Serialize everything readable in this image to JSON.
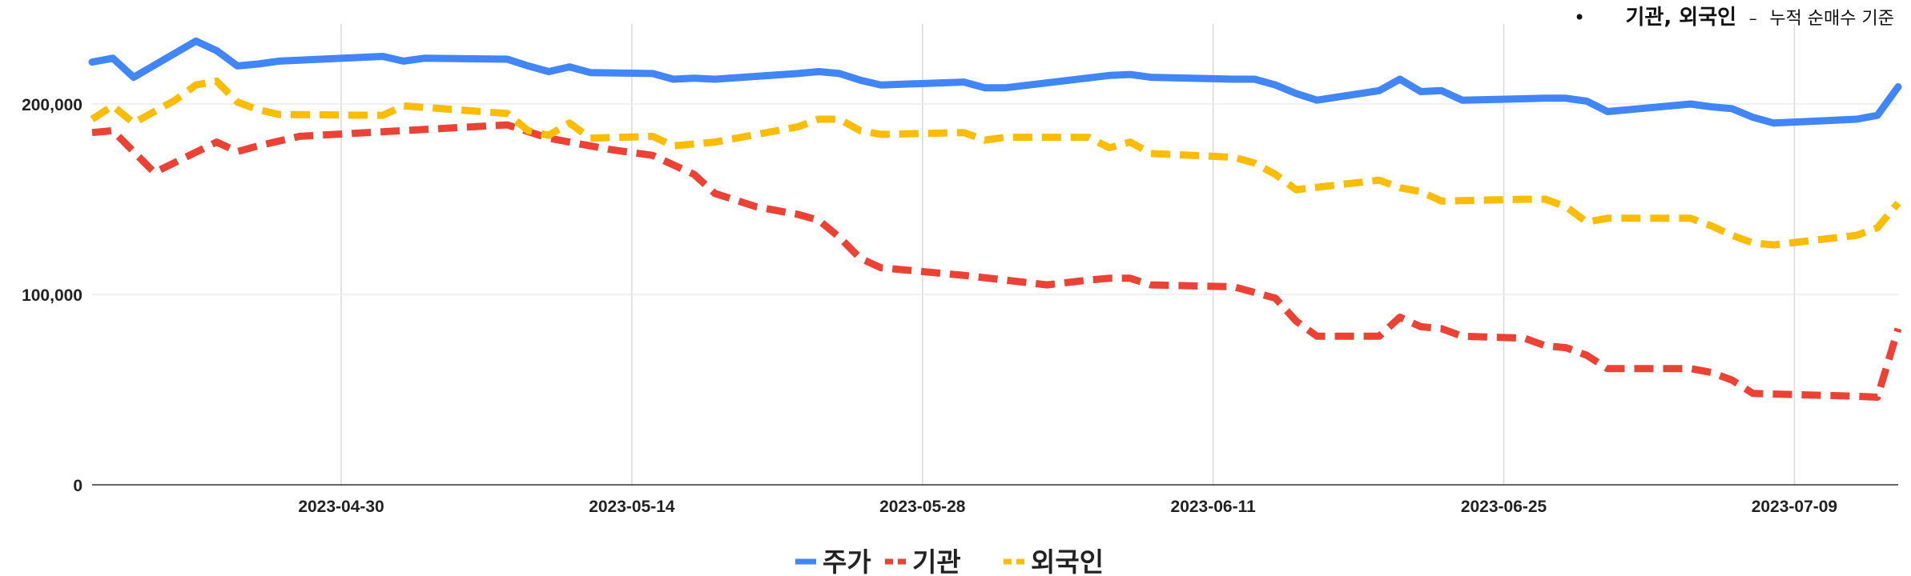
{
  "chart_data": {
    "type": "line",
    "title": "",
    "xlabel": "",
    "ylabel": "",
    "note": {
      "bullet": "•",
      "main": "기관, 외국인",
      "dash": "–",
      "rest": "누적 순매수 기준"
    },
    "x_ticks": [
      "2023-04-30",
      "2023-05-14",
      "2023-05-28",
      "2023-06-11",
      "2023-06-25",
      "2023-07-09"
    ],
    "y_ticks": [
      {
        "value": 0,
        "label": "0"
      },
      {
        "value": 100000,
        "label": "100,000"
      },
      {
        "value": 200000,
        "label": "200,000"
      }
    ],
    "x_range": [
      "2023-04-18",
      "2023-07-14"
    ],
    "y_range": [
      0,
      242000
    ],
    "grid": {
      "vertical": true,
      "horizontal": true
    },
    "legend_position": "bottom",
    "series": [
      {
        "name": "주가",
        "color": "#4285F4",
        "dash": "solid",
        "points": [
          [
            "2023-04-18",
            222000
          ],
          [
            "2023-04-19",
            224000
          ],
          [
            "2023-04-20",
            214000
          ],
          [
            "2023-04-23",
            233000
          ],
          [
            "2023-04-24",
            228000
          ],
          [
            "2023-04-25",
            220000
          ],
          [
            "2023-04-26",
            221000
          ],
          [
            "2023-04-27",
            222500
          ],
          [
            "2023-05-02",
            225000
          ],
          [
            "2023-05-03",
            222500
          ],
          [
            "2023-05-04",
            224000
          ],
          [
            "2023-05-08",
            223500
          ],
          [
            "2023-05-09",
            220000
          ],
          [
            "2023-05-10",
            217000
          ],
          [
            "2023-05-11",
            219500
          ],
          [
            "2023-05-12",
            216500
          ],
          [
            "2023-05-15",
            216000
          ],
          [
            "2023-05-16",
            213000
          ],
          [
            "2023-05-17",
            213500
          ],
          [
            "2023-05-18",
            213000
          ],
          [
            "2023-05-22",
            216000
          ],
          [
            "2023-05-23",
            217000
          ],
          [
            "2023-05-24",
            216000
          ],
          [
            "2023-05-25",
            212500
          ],
          [
            "2023-05-26",
            210000
          ],
          [
            "2023-05-30",
            211500
          ],
          [
            "2023-05-31",
            208500
          ],
          [
            "2023-06-01",
            208500
          ],
          [
            "2023-06-06",
            215000
          ],
          [
            "2023-06-07",
            215500
          ],
          [
            "2023-06-08",
            214000
          ],
          [
            "2023-06-12",
            213000
          ],
          [
            "2023-06-13",
            213000
          ],
          [
            "2023-06-14",
            210000
          ],
          [
            "2023-06-15",
            205500
          ],
          [
            "2023-06-16",
            202000
          ],
          [
            "2023-06-19",
            207000
          ],
          [
            "2023-06-20",
            213000
          ],
          [
            "2023-06-21",
            206500
          ],
          [
            "2023-06-22",
            207000
          ],
          [
            "2023-06-23",
            202000
          ],
          [
            "2023-06-27",
            203000
          ],
          [
            "2023-06-28",
            203000
          ],
          [
            "2023-06-29",
            201500
          ],
          [
            "2023-06-30",
            196000
          ],
          [
            "2023-07-04",
            200000
          ],
          [
            "2023-07-05",
            198500
          ],
          [
            "2023-07-06",
            197500
          ],
          [
            "2023-07-07",
            193000
          ],
          [
            "2023-07-08",
            190000
          ],
          [
            "2023-07-12",
            192000
          ],
          [
            "2023-07-13",
            194000
          ],
          [
            "2023-07-14",
            209000
          ]
        ]
      },
      {
        "name": "기관",
        "color": "#EA4335",
        "dash": "dashed",
        "points": [
          [
            "2023-04-18",
            185000
          ],
          [
            "2023-04-19",
            186000
          ],
          [
            "2023-04-21",
            164000
          ],
          [
            "2023-04-24",
            180000
          ],
          [
            "2023-04-25",
            175000
          ],
          [
            "2023-04-26",
            178000
          ],
          [
            "2023-04-28",
            183000
          ],
          [
            "2023-05-08",
            189000
          ],
          [
            "2023-05-10",
            182000
          ],
          [
            "2023-05-11",
            180000
          ],
          [
            "2023-05-13",
            176000
          ],
          [
            "2023-05-15",
            173000
          ],
          [
            "2023-05-17",
            163000
          ],
          [
            "2023-05-18",
            153000
          ],
          [
            "2023-05-20",
            146000
          ],
          [
            "2023-05-22",
            142000
          ],
          [
            "2023-05-23",
            139000
          ],
          [
            "2023-05-24",
            130000
          ],
          [
            "2023-05-25",
            119000
          ],
          [
            "2023-05-26",
            114000
          ],
          [
            "2023-05-30",
            110000
          ],
          [
            "2023-06-03",
            105000
          ],
          [
            "2023-06-05",
            107500
          ],
          [
            "2023-06-06",
            108500
          ],
          [
            "2023-06-07",
            108500
          ],
          [
            "2023-06-08",
            105000
          ],
          [
            "2023-06-12",
            104000
          ],
          [
            "2023-06-14",
            98000
          ],
          [
            "2023-06-15",
            86000
          ],
          [
            "2023-06-16",
            78000
          ],
          [
            "2023-06-19",
            78000
          ],
          [
            "2023-06-20",
            88000
          ],
          [
            "2023-06-21",
            83000
          ],
          [
            "2023-06-22",
            82000
          ],
          [
            "2023-06-23",
            78000
          ],
          [
            "2023-06-26",
            77000
          ],
          [
            "2023-06-27",
            73000
          ],
          [
            "2023-06-28",
            72000
          ],
          [
            "2023-06-29",
            68000
          ],
          [
            "2023-06-30",
            61000
          ],
          [
            "2023-07-04",
            61000
          ],
          [
            "2023-07-05",
            59000
          ],
          [
            "2023-07-06",
            55000
          ],
          [
            "2023-07-07",
            48000
          ],
          [
            "2023-07-12",
            46500
          ],
          [
            "2023-07-13",
            46000
          ],
          [
            "2023-07-14",
            82000
          ]
        ]
      },
      {
        "name": "외국인",
        "color": "#FBBC04",
        "dash": "dashed",
        "points": [
          [
            "2023-04-18",
            192000
          ],
          [
            "2023-04-19",
            199000
          ],
          [
            "2023-04-20",
            190000
          ],
          [
            "2023-04-22",
            202000
          ],
          [
            "2023-04-23",
            210000
          ],
          [
            "2023-04-24",
            212000
          ],
          [
            "2023-04-25",
            201000
          ],
          [
            "2023-04-26",
            197000
          ],
          [
            "2023-04-27",
            194500
          ],
          [
            "2023-05-02",
            194000
          ],
          [
            "2023-05-03",
            199000
          ],
          [
            "2023-05-08",
            195000
          ],
          [
            "2023-05-09",
            186000
          ],
          [
            "2023-05-10",
            183500
          ],
          [
            "2023-05-11",
            190000
          ],
          [
            "2023-05-12",
            182000
          ],
          [
            "2023-05-15",
            183000
          ],
          [
            "2023-05-16",
            178000
          ],
          [
            "2023-05-18",
            180000
          ],
          [
            "2023-05-22",
            188000
          ],
          [
            "2023-05-23",
            192000
          ],
          [
            "2023-05-24",
            192000
          ],
          [
            "2023-05-25",
            186000
          ],
          [
            "2023-05-26",
            184000
          ],
          [
            "2023-05-30",
            185000
          ],
          [
            "2023-05-31",
            181000
          ],
          [
            "2023-06-01",
            182500
          ],
          [
            "2023-06-05",
            182500
          ],
          [
            "2023-06-06",
            177000
          ],
          [
            "2023-06-07",
            180000
          ],
          [
            "2023-06-08",
            174000
          ],
          [
            "2023-06-12",
            172000
          ],
          [
            "2023-06-13",
            169000
          ],
          [
            "2023-06-14",
            163000
          ],
          [
            "2023-06-15",
            155000
          ],
          [
            "2023-06-19",
            160000
          ],
          [
            "2023-06-20",
            156000
          ],
          [
            "2023-06-21",
            154000
          ],
          [
            "2023-06-22",
            149000
          ],
          [
            "2023-06-26",
            150000
          ],
          [
            "2023-06-27",
            150000
          ],
          [
            "2023-06-28",
            146000
          ],
          [
            "2023-06-29",
            138000
          ],
          [
            "2023-06-30",
            140000
          ],
          [
            "2023-07-04",
            140000
          ],
          [
            "2023-07-05",
            136000
          ],
          [
            "2023-07-06",
            131000
          ],
          [
            "2023-07-07",
            127000
          ],
          [
            "2023-07-08",
            126000
          ],
          [
            "2023-07-12",
            131000
          ],
          [
            "2023-07-13",
            135000
          ],
          [
            "2023-07-14",
            148000
          ]
        ]
      }
    ]
  }
}
